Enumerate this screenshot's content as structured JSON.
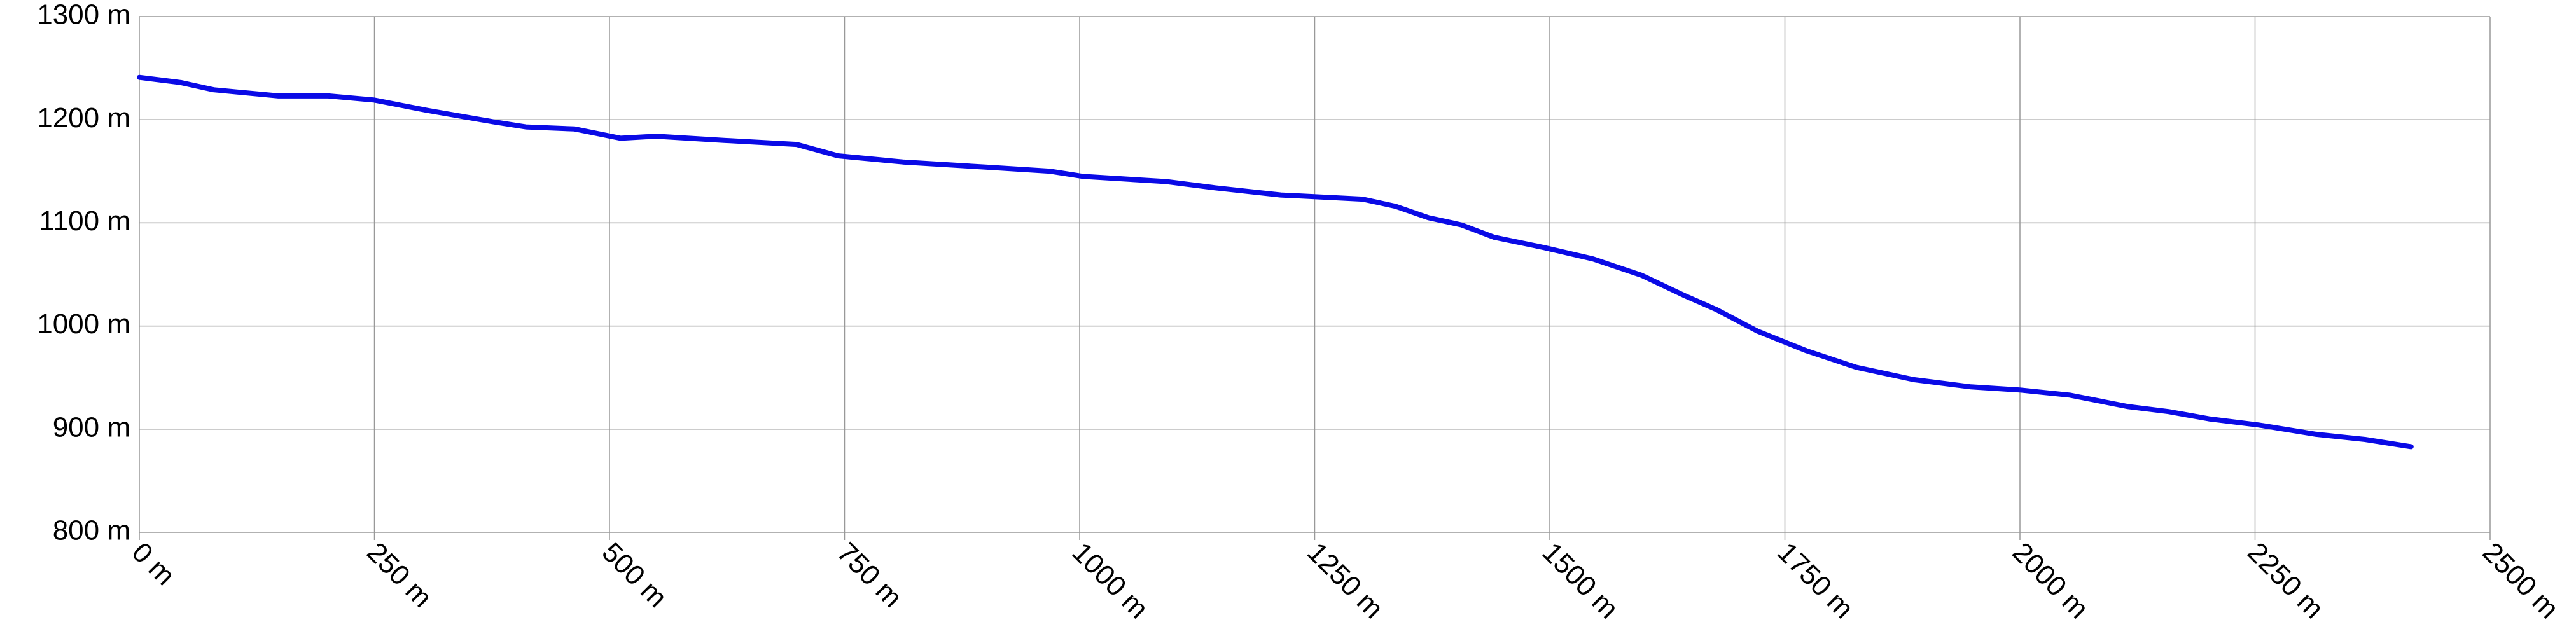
{
  "chart_data": {
    "type": "line",
    "color": "#0a0ae6",
    "grid": true,
    "x": [
      0,
      44,
      79,
      148,
      201,
      250,
      306,
      376,
      411,
      463,
      512,
      550,
      620,
      699,
      743,
      812,
      900,
      969,
      1004,
      1092,
      1144,
      1214,
      1301,
      1336,
      1371,
      1406,
      1441,
      1494,
      1546,
      1598,
      1642,
      1677,
      1721,
      1773,
      1826,
      1887,
      1948,
      2000,
      2053,
      2114,
      2158,
      2201,
      2254,
      2315,
      2367,
      2416
    ],
    "values": [
      1241,
      1236,
      1229,
      1223,
      1223,
      1219,
      1209,
      1198,
      1193,
      1191,
      1182,
      1184,
      1180,
      1176,
      1165,
      1159,
      1154,
      1150,
      1145,
      1140,
      1134,
      1127,
      1123,
      1116,
      1105,
      1098,
      1086,
      1076,
      1065,
      1049,
      1030,
      1016,
      995,
      976,
      960,
      948,
      941,
      938,
      933,
      922,
      917,
      910,
      904,
      895,
      890,
      883
    ],
    "xlim": [
      0,
      2500
    ],
    "xticks": [
      {
        "value": 0,
        "label": "0 m"
      },
      {
        "value": 250,
        "label": "250 m"
      },
      {
        "value": 500,
        "label": "500 m"
      },
      {
        "value": 750,
        "label": "750 m"
      },
      {
        "value": 1000,
        "label": "1000 m"
      },
      {
        "value": 1250,
        "label": "1250 m"
      },
      {
        "value": 1500,
        "label": "1500 m"
      },
      {
        "value": 1750,
        "label": "1750 m"
      },
      {
        "value": 2000,
        "label": "2000 m"
      },
      {
        "value": 2250,
        "label": "2250 m"
      },
      {
        "value": 2500,
        "label": "2500 m"
      }
    ],
    "ylim": [
      800,
      1300
    ],
    "yticks": [
      {
        "value": 800,
        "label": "800 m"
      },
      {
        "value": 900,
        "label": "900 m"
      },
      {
        "value": 1000,
        "label": "1000 m"
      },
      {
        "value": 1100,
        "label": "1100 m"
      },
      {
        "value": 1200,
        "label": "1200 m"
      },
      {
        "value": 1300,
        "label": "1300 m"
      }
    ]
  }
}
